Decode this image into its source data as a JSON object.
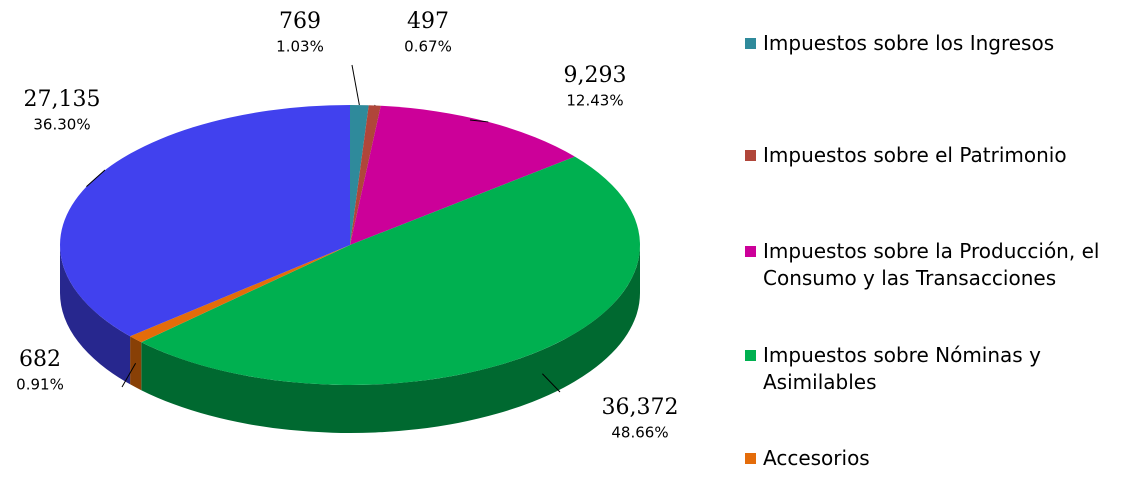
{
  "chart_data": {
    "type": "pie3d",
    "categories": [
      "Impuestos sobre los Ingresos",
      "Impuestos sobre el Patrimonio",
      "Impuestos sobre la Producción, el Consumo y  las Transacciones",
      "Impuestos sobre Nóminas y Asimilables",
      "Accesorios",
      null
    ],
    "values": [
      769,
      497,
      9293,
      36372,
      682,
      27135
    ],
    "value_labels": [
      "769",
      "497",
      "9,293",
      "36,372",
      "682",
      "27,135"
    ],
    "percent_labels": [
      "1.03%",
      "0.67%",
      "12.43%",
      "48.66%",
      "0.91%",
      "36.30%"
    ],
    "colors": [
      "#2f8a9b",
      "#b0463a",
      "#cc0099",
      "#00b050",
      "#e46c0a",
      "#4141ee"
    ],
    "legend": "right"
  }
}
